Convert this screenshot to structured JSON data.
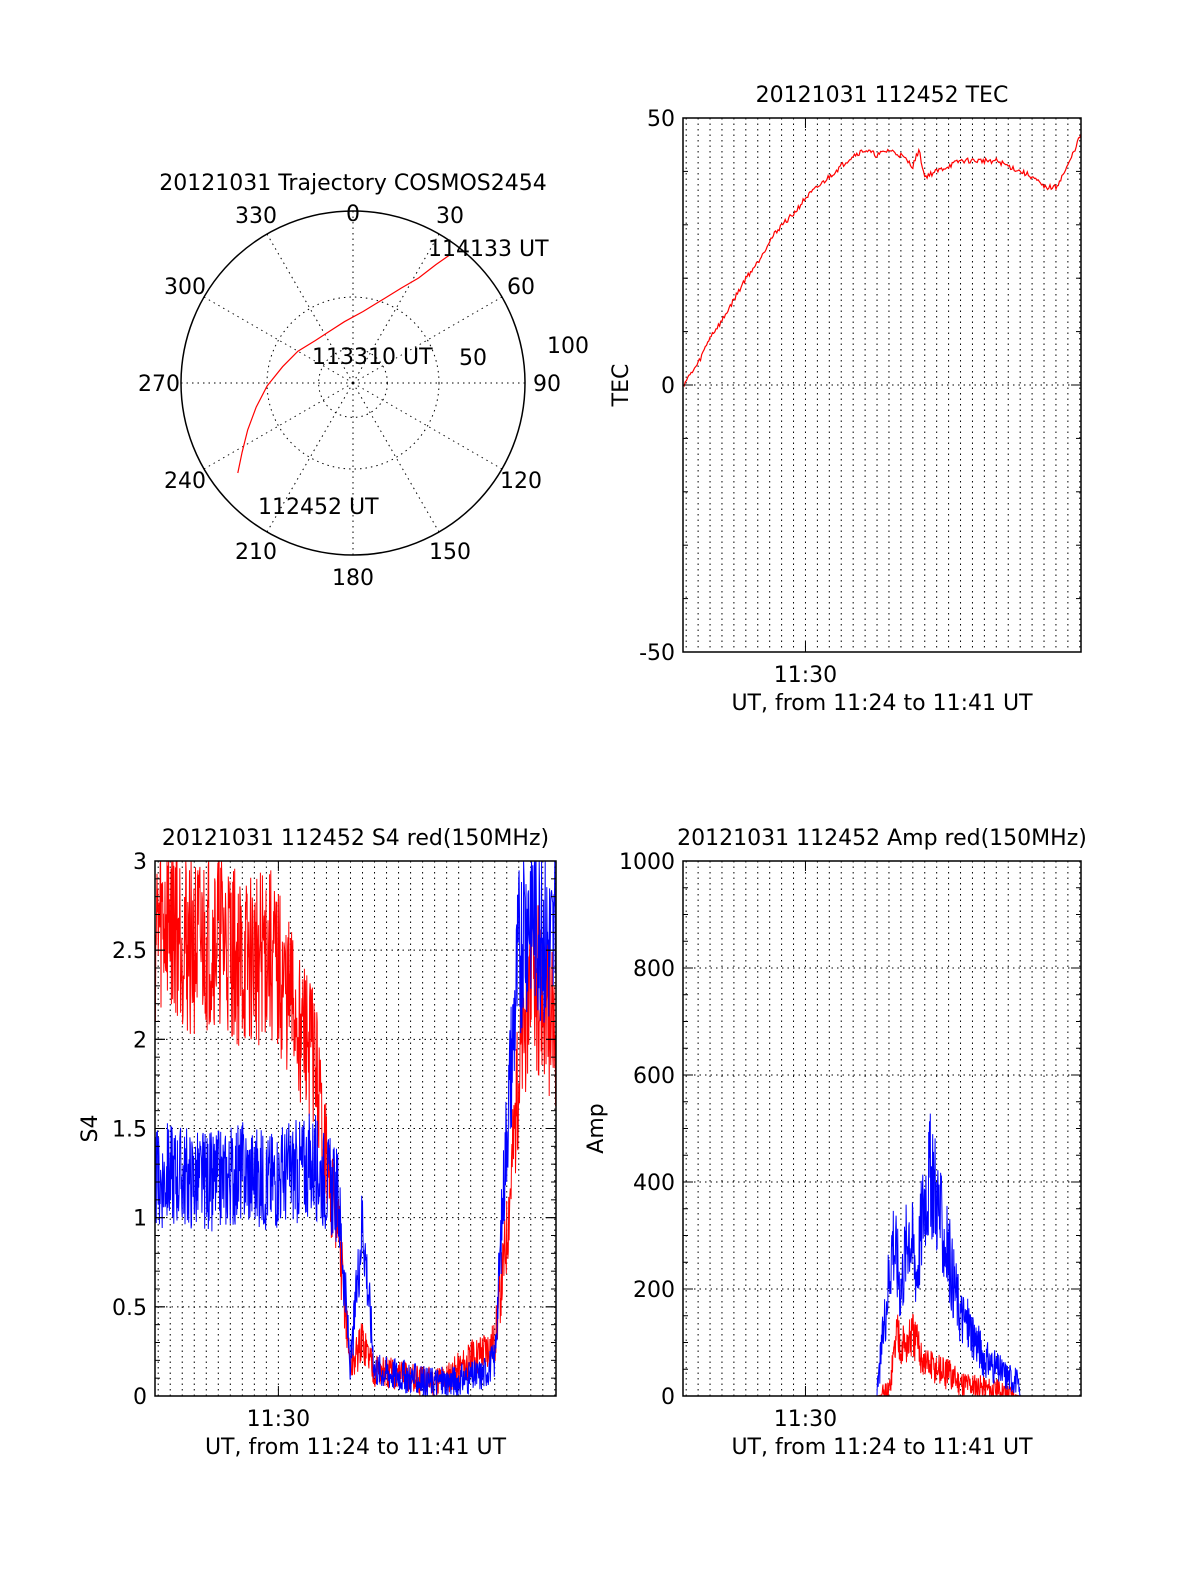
{
  "chart_data": [
    {
      "type": "polar",
      "title": "20121031 Trajectory COSMOS2454",
      "azimuth_labels": [
        "0",
        "30",
        "60",
        "90",
        "120",
        "150",
        "180",
        "210",
        "240",
        "270",
        "300",
        "330"
      ],
      "radial_labels": [
        "50",
        "100"
      ],
      "rlim": [
        0,
        100
      ],
      "grid": true,
      "series": [
        {
          "color": "#ff0000",
          "points": [
            [
              232,
              85
            ],
            [
              238,
              76
            ],
            [
              246,
              67
            ],
            [
              256,
              58
            ],
            [
              268,
              50
            ],
            [
              283,
              42
            ],
            [
              300,
              37
            ],
            [
              318,
              33
            ],
            [
              335,
              33
            ],
            [
              352,
              36
            ],
            [
              8,
              42
            ],
            [
              20,
              52
            ],
            [
              27,
              62
            ],
            [
              32,
              72
            ],
            [
              35,
              84
            ],
            [
              37,
              93
            ]
          ]
        }
      ],
      "annotations": [
        "114133 UT",
        "113310 UT",
        "112452 UT"
      ]
    },
    {
      "type": "line",
      "title": "20121031 112452 TEC",
      "xlabel": "UT, from 11:24 to 11:41 UT",
      "ylabel": "TEC",
      "x_tick_labels": [
        "11:30"
      ],
      "xlim": [
        "11:24:52",
        "11:41:33"
      ],
      "ylim": [
        -50,
        50
      ],
      "y_ticks": [
        "50",
        "0",
        "-50"
      ],
      "grid": true,
      "series": [
        {
          "color": "#ff0000",
          "x": [
            "11:24:52",
            "11:25:30",
            "11:26:00",
            "11:26:30",
            "11:27:00",
            "11:27:30",
            "11:28:00",
            "11:28:30",
            "11:29:00",
            "11:29:30",
            "11:30:00",
            "11:30:30",
            "11:31:00",
            "11:31:30",
            "11:32:00",
            "11:32:30",
            "11:33:00",
            "11:33:30",
            "11:34:00",
            "11:34:30",
            "11:34:45",
            "11:35:00",
            "11:35:30",
            "11:36:00",
            "11:36:30",
            "11:37:00",
            "11:37:30",
            "11:38:00",
            "11:38:30",
            "11:39:00",
            "11:39:30",
            "11:40:00",
            "11:40:30",
            "11:41:00",
            "11:41:33"
          ],
          "values": [
            0,
            4,
            9,
            12,
            16,
            20,
            23,
            27,
            30,
            32,
            35,
            37,
            39,
            41,
            43,
            44,
            43,
            44,
            43,
            41,
            44,
            39,
            40,
            41,
            42,
            42,
            42,
            42,
            41,
            40,
            39,
            37,
            37,
            41,
            47
          ]
        }
      ]
    },
    {
      "type": "line",
      "title": "20121031 112452 S4 red(150MHz)",
      "xlabel": "UT, from 11:24 to 11:41 UT",
      "ylabel": "S4",
      "x_tick_labels": [
        "11:30"
      ],
      "xlim": [
        "11:24:52",
        "11:41:33"
      ],
      "ylim": [
        0,
        3
      ],
      "y_ticks": [
        "0",
        "0.5",
        "1",
        "1.5",
        "2",
        "2.5",
        "3"
      ],
      "grid": true,
      "series": [
        {
          "color": "#ff0000",
          "x": [
            "11:24:52",
            "11:25:30",
            "11:26:30",
            "11:27:30",
            "11:28:30",
            "11:29:30",
            "11:30:30",
            "11:31:30",
            "11:32:00",
            "11:32:30",
            "11:33:00",
            "11:33:30",
            "11:34:00",
            "11:34:30",
            "11:35:00",
            "11:36:00",
            "11:37:00",
            "11:38:00",
            "11:38:30",
            "11:39:00",
            "11:39:30",
            "11:40:00",
            "11:40:30",
            "11:41:00",
            "11:41:33"
          ],
          "values": [
            2.6,
            2.7,
            2.5,
            2.6,
            2.4,
            2.5,
            2.2,
            1.9,
            1.3,
            0.9,
            0.15,
            0.3,
            0.15,
            0.12,
            0.12,
            0.08,
            0.1,
            0.2,
            0.25,
            0.3,
            0.9,
            1.8,
            2.4,
            2.2,
            2.0
          ]
        },
        {
          "color": "#0000ff",
          "x": [
            "11:24:52",
            "11:25:30",
            "11:26:30",
            "11:27:30",
            "11:28:30",
            "11:29:30",
            "11:30:30",
            "11:31:30",
            "11:32:00",
            "11:32:30",
            "11:33:00",
            "11:33:30",
            "11:34:00",
            "11:34:30",
            "11:35:00",
            "11:36:00",
            "11:37:00",
            "11:38:00",
            "11:38:30",
            "11:39:00",
            "11:39:30",
            "11:40:00",
            "11:40:30",
            "11:41:00",
            "11:41:33"
          ],
          "values": [
            1.2,
            1.25,
            1.2,
            1.2,
            1.25,
            1.2,
            1.25,
            1.3,
            1.2,
            1.1,
            0.15,
            1.0,
            0.15,
            0.13,
            0.12,
            0.08,
            0.08,
            0.1,
            0.12,
            0.2,
            1.5,
            2.5,
            2.8,
            2.6,
            2.5
          ]
        }
      ]
    },
    {
      "type": "line",
      "title": "20121031 112452 Amp red(150MHz)",
      "xlabel": "UT, from 11:24 to 11:41 UT",
      "ylabel": "Amp",
      "x_tick_labels": [
        "11:30"
      ],
      "xlim": [
        "11:24:52",
        "11:41:33"
      ],
      "ylim": [
        0,
        1000
      ],
      "y_ticks": [
        "0",
        "200",
        "400",
        "600",
        "800",
        "1000"
      ],
      "grid": true,
      "series": [
        {
          "color": "#ff0000",
          "x": [
            "11:24:52",
            "11:30:00",
            "11:33:00",
            "11:33:30",
            "11:33:50",
            "11:34:10",
            "11:34:30",
            "11:35:00",
            "11:35:30",
            "11:36:00",
            "11:36:30",
            "11:37:00",
            "11:37:30",
            "11:38:00",
            "11:38:30",
            "11:39:00",
            "11:41:33"
          ],
          "values": [
            0,
            0,
            0,
            5,
            120,
            90,
            110,
            60,
            50,
            40,
            25,
            20,
            15,
            10,
            5,
            0,
            0
          ]
        },
        {
          "color": "#0000ff",
          "x": [
            "11:24:52",
            "11:30:00",
            "11:33:00",
            "11:33:20",
            "11:33:40",
            "11:34:00",
            "11:34:20",
            "11:34:40",
            "11:35:00",
            "11:35:20",
            "11:35:40",
            "11:36:00",
            "11:36:30",
            "11:37:00",
            "11:37:30",
            "11:38:00",
            "11:38:30",
            "11:38:50",
            "11:39:00",
            "11:41:33"
          ],
          "values": [
            0,
            0,
            0,
            150,
            300,
            200,
            320,
            230,
            380,
            420,
            320,
            260,
            150,
            120,
            70,
            50,
            35,
            30,
            0,
            0
          ]
        }
      ]
    }
  ]
}
